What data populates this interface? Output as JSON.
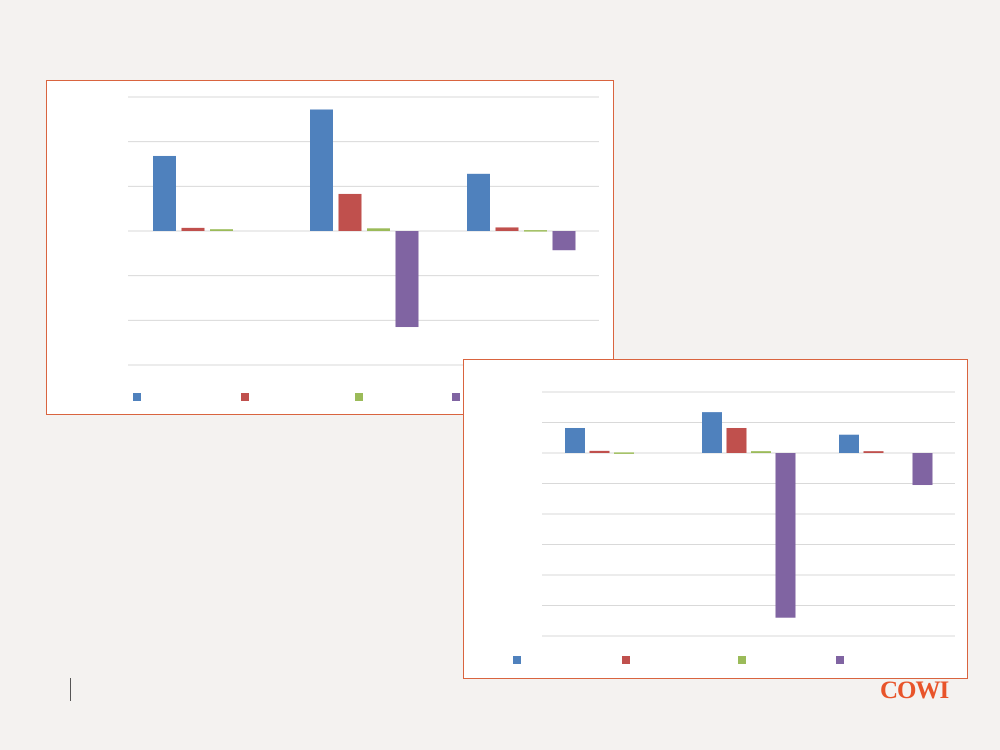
{
  "brand": {
    "logo_text": "COWI",
    "color": "#e8542a"
  },
  "colors": {
    "frame_border": "#d9643f",
    "gridline": "#d9d9d9",
    "series": [
      "#4f81bd",
      "#c0504d",
      "#9bbb59",
      "#8064a2"
    ]
  },
  "chart_data": [
    {
      "type": "bar",
      "title": "",
      "xlabel": "",
      "ylabel": "",
      "grid": true,
      "legend": "bottom",
      "categories": [
        "",
        "",
        ""
      ],
      "ylim": [
        -3,
        3
      ],
      "gridlines": [
        -3,
        -2,
        -1,
        0,
        1,
        2,
        3
      ],
      "series": [
        {
          "values": [
            1.68,
            2.72,
            1.28
          ]
        },
        {
          "values": [
            0.07,
            0.83,
            0.08
          ]
        },
        {
          "values": [
            0.04,
            0.06,
            0.02
          ]
        },
        {
          "values": [
            0,
            -2.15,
            -0.43
          ]
        }
      ]
    },
    {
      "type": "bar",
      "title": "",
      "xlabel": "",
      "ylabel": "",
      "grid": true,
      "legend": "bottom",
      "categories": [
        "",
        "",
        ""
      ],
      "ylim": [
        -6,
        2
      ],
      "gridlines": [
        -6,
        -5,
        -4,
        -3,
        -2,
        -1,
        0,
        1,
        2
      ],
      "series": [
        {
          "values": [
            0.82,
            1.34,
            0.6
          ]
        },
        {
          "values": [
            0.07,
            0.82,
            0.06
          ]
        },
        {
          "values": [
            0.02,
            0.06,
            0
          ]
        },
        {
          "values": [
            0,
            -5.4,
            -1.05
          ]
        }
      ]
    }
  ]
}
